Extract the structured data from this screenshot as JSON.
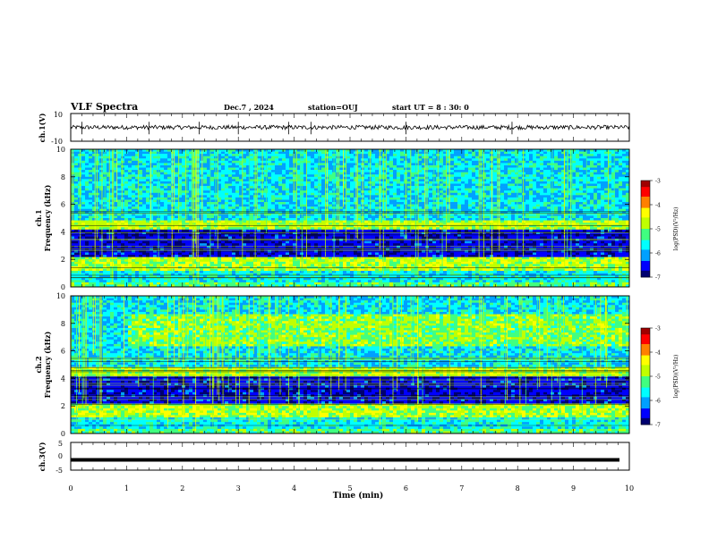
{
  "header": {
    "title": "VLF Spectra",
    "date": "Dec.7 , 2024",
    "station": "station=OUJ",
    "start_ut": "start UT =  8 : 30: 0"
  },
  "colors": {
    "background": "#ffffff",
    "axis": "#000000",
    "colormap": [
      "#000070",
      "#0000ff",
      "#00a0ff",
      "#00ffff",
      "#40ff80",
      "#c0ff00",
      "#ffff00",
      "#ff8000",
      "#ff0000",
      "#a00000"
    ]
  },
  "chart_data": [
    {
      "type": "line",
      "panel": "ch1-waveform",
      "ylabel": "ch.1(V)",
      "ylim": [
        -10,
        10
      ],
      "yticks": [
        "10",
        "-10"
      ],
      "xlim": [
        0,
        10
      ],
      "description_values": {
        "baseline": 0,
        "typical_amplitude": 1.5,
        "spikes_at_min": [
          0.2,
          1.4,
          2.3,
          3.0,
          3.9,
          4.3,
          6.0,
          7.9
        ]
      }
    },
    {
      "type": "heatmap",
      "panel": "ch1-spectrogram",
      "ylabel": "ch.1\nFrequency (kHz)",
      "ylabel_top": "ch.1",
      "ylabel_bottom": "Frequency (kHz)",
      "ylim": [
        0,
        10
      ],
      "yticks": [
        "0",
        "2",
        "4",
        "6",
        "8",
        "10"
      ],
      "xlim": [
        0,
        10
      ],
      "colorbar": {
        "label": "log(PSD)(V²/Hz)",
        "range": [
          -7,
          -3
        ],
        "ticks": [
          "-3",
          "-4",
          "-5",
          "-6",
          "-7"
        ]
      }
    },
    {
      "type": "heatmap",
      "panel": "ch2-spectrogram",
      "ylabel_top": "ch.2",
      "ylabel_bottom": "Frequency (kHz)",
      "ylim": [
        0,
        10
      ],
      "yticks": [
        "0",
        "2",
        "4",
        "6",
        "8",
        "10"
      ],
      "xlim": [
        0,
        10
      ],
      "colorbar": {
        "label": "log(PSD)(V²/Hz)",
        "range": [
          -7,
          -3
        ],
        "ticks": [
          "-3",
          "-4",
          "-5",
          "-6",
          "-7"
        ]
      }
    },
    {
      "type": "line",
      "panel": "ch3-waveform",
      "ylabel": "ch.3(V)",
      "ylim": [
        -5,
        5
      ],
      "yticks": [
        "5",
        "0",
        "-5"
      ],
      "xlim": [
        0,
        10
      ],
      "description_values": {
        "baseline": -1.3
      }
    }
  ],
  "xaxis": {
    "label": "Time (min)",
    "ticks": [
      "0",
      "1",
      "2",
      "3",
      "4",
      "5",
      "6",
      "7",
      "8",
      "9",
      "10"
    ]
  }
}
